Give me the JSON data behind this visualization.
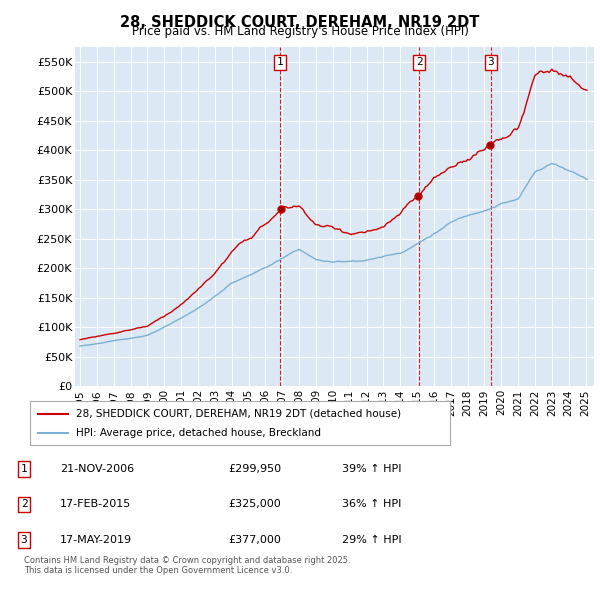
{
  "title": "28, SHEDDICK COURT, DEREHAM, NR19 2DT",
  "subtitle": "Price paid vs. HM Land Registry's House Price Index (HPI)",
  "bg_color": "#dce9f5",
  "red_line_color": "#cc0000",
  "blue_line_color": "#7ab0d4",
  "ylim": [
    0,
    575000
  ],
  "yticks": [
    0,
    50000,
    100000,
    150000,
    200000,
    250000,
    300000,
    350000,
    400000,
    450000,
    500000,
    550000
  ],
  "ytick_labels": [
    "£0",
    "£50K",
    "£100K",
    "£150K",
    "£200K",
    "£250K",
    "£300K",
    "£350K",
    "£400K",
    "£450K",
    "£500K",
    "£550K"
  ],
  "sale_year_floats": [
    2006.88,
    2015.12,
    2019.37
  ],
  "sale_prices": [
    299950,
    325000,
    377000
  ],
  "sale_labels": [
    "1",
    "2",
    "3"
  ],
  "sale_hpi_pct": [
    "39% ↑ HPI",
    "36% ↑ HPI",
    "29% ↑ HPI"
  ],
  "sale_date_strs": [
    "21-NOV-2006",
    "17-FEB-2015",
    "17-MAY-2019"
  ],
  "sale_price_strs": [
    "£299,950",
    "£325,000",
    "£377,000"
  ],
  "legend_line1": "28, SHEDDICK COURT, DEREHAM, NR19 2DT (detached house)",
  "legend_line2": "HPI: Average price, detached house, Breckland",
  "footnote": "Contains HM Land Registry data © Crown copyright and database right 2025.\nThis data is licensed under the Open Government Licence v3.0.",
  "xtick_years": [
    1995,
    1996,
    1997,
    1998,
    1999,
    2000,
    2001,
    2002,
    2003,
    2004,
    2005,
    2006,
    2007,
    2008,
    2009,
    2010,
    2011,
    2012,
    2013,
    2014,
    2015,
    2016,
    2017,
    2018,
    2019,
    2020,
    2021,
    2022,
    2023,
    2024,
    2025
  ]
}
